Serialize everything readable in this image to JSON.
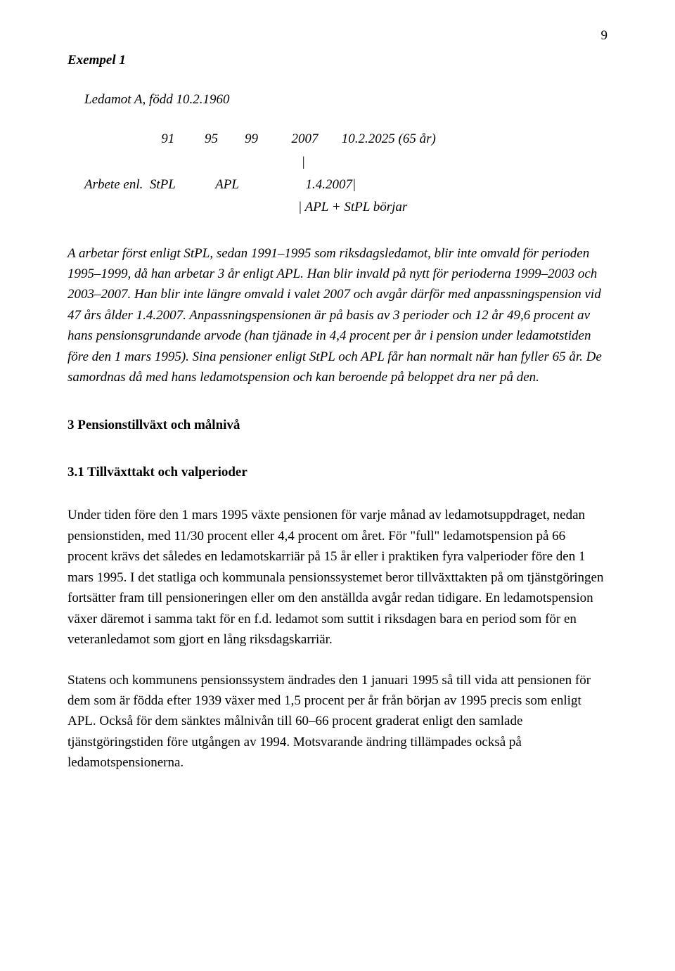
{
  "page_number": "9",
  "example_label": "Exempel 1",
  "ledamot_line": "Ledamot A, född 10.2.1960",
  "timeline": {
    "row1": "                       91         95        99          2007       10.2.2025 (65 år)",
    "row2": "                                                                 |",
    "row3": "Arbete enl.  StPL            APL                    1.4.2007|",
    "row4": "                                                                | APL + StPL börjar"
  },
  "italic_paragraph": "A arbetar först enligt StPL, sedan 1991–1995 som riksdagsledamot, blir inte omvald för perioden 1995–1999, då han arbetar 3 år enligt APL. Han blir invald på nytt för perioderna 1999–2003 och 2003–2007. Han blir inte längre omvald i valet 2007 och avgår därför med anpassningspension vid 47 års ålder 1.4.2007. Anpassningspensionen är på basis av 3 perioder och 12 år 49,6 procent av hans pensionsgrundande arvode (han tjänade in 4,4 procent per år i pension under ledamotstiden före den 1 mars 1995). Sina pensioner enligt StPL och APL får han normalt när han fyller 65 år. De samordnas då med hans ledamotspension och kan beroende på beloppet dra ner på den.",
  "heading3": "3 Pensionstillväxt och målnivå",
  "heading31": "3.1 Tillväxttakt och valperioder",
  "para1": "Under tiden före den 1 mars 1995 växte pensionen för varje månad av ledamotsuppdraget, nedan pensionstiden, med 11/30 procent eller 4,4 procent om året. För \"full\" ledamotspension på 66 procent krävs det således en ledamotskarriär på 15 år eller i praktiken fyra valperioder före den 1 mars 1995. I det statliga och kommunala pensionssystemet beror tillväxttakten på om tjänstgöringen fortsätter fram till pensioneringen eller om den anställda avgår redan tidigare. En ledamotspension växer däremot i samma takt för en f.d. ledamot som suttit i riksdagen bara en period som för en veteranledamot som gjort en lång riksdagskarriär.",
  "para2": "Statens och kommunens pensionssystem ändrades den 1 januari 1995 så till vida att pensionen för dem som är födda efter 1939 växer med 1,5 procent per år från början av 1995 precis som enligt APL. Också för dem sänktes målnivån till 60–66 procent graderat enligt den samlade tjänstgöringstiden före utgången av 1994. Motsvarande ändring tillämpades också på ledamotspensionerna."
}
